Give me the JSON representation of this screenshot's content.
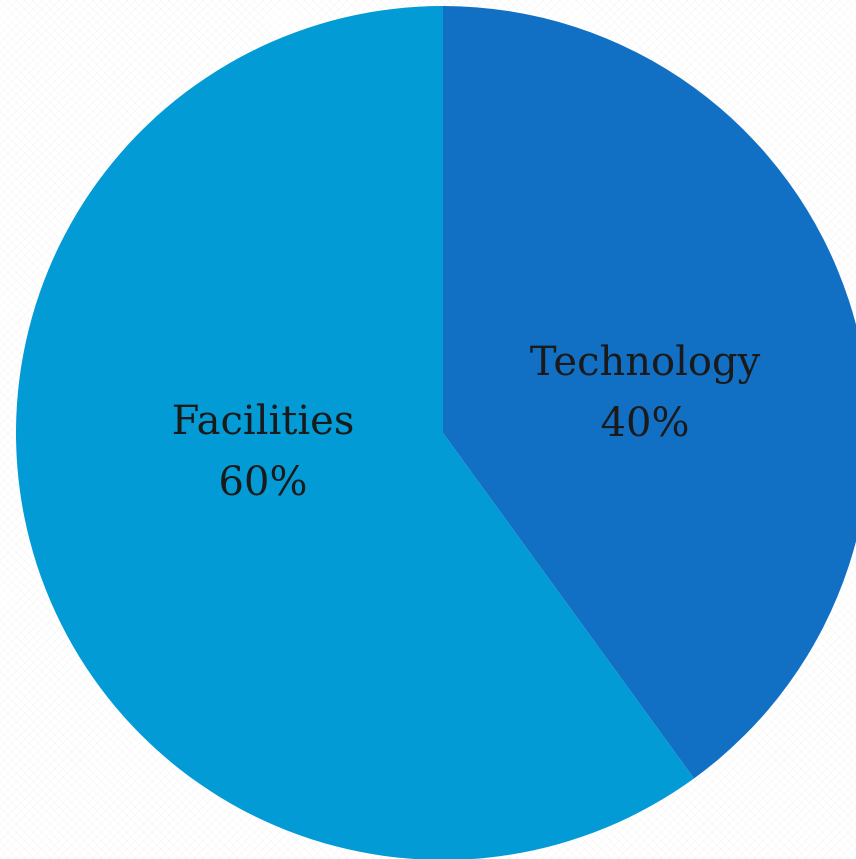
{
  "chart_data": {
    "type": "pie",
    "slices": [
      {
        "label": "Technology",
        "value": 40,
        "value_label": "40%",
        "color": "#1170c4"
      },
      {
        "label": "Facilities",
        "value": 60,
        "value_label": "60%",
        "color": "#039bd6"
      }
    ],
    "start": "12 o'clock",
    "direction": "clockwise"
  }
}
